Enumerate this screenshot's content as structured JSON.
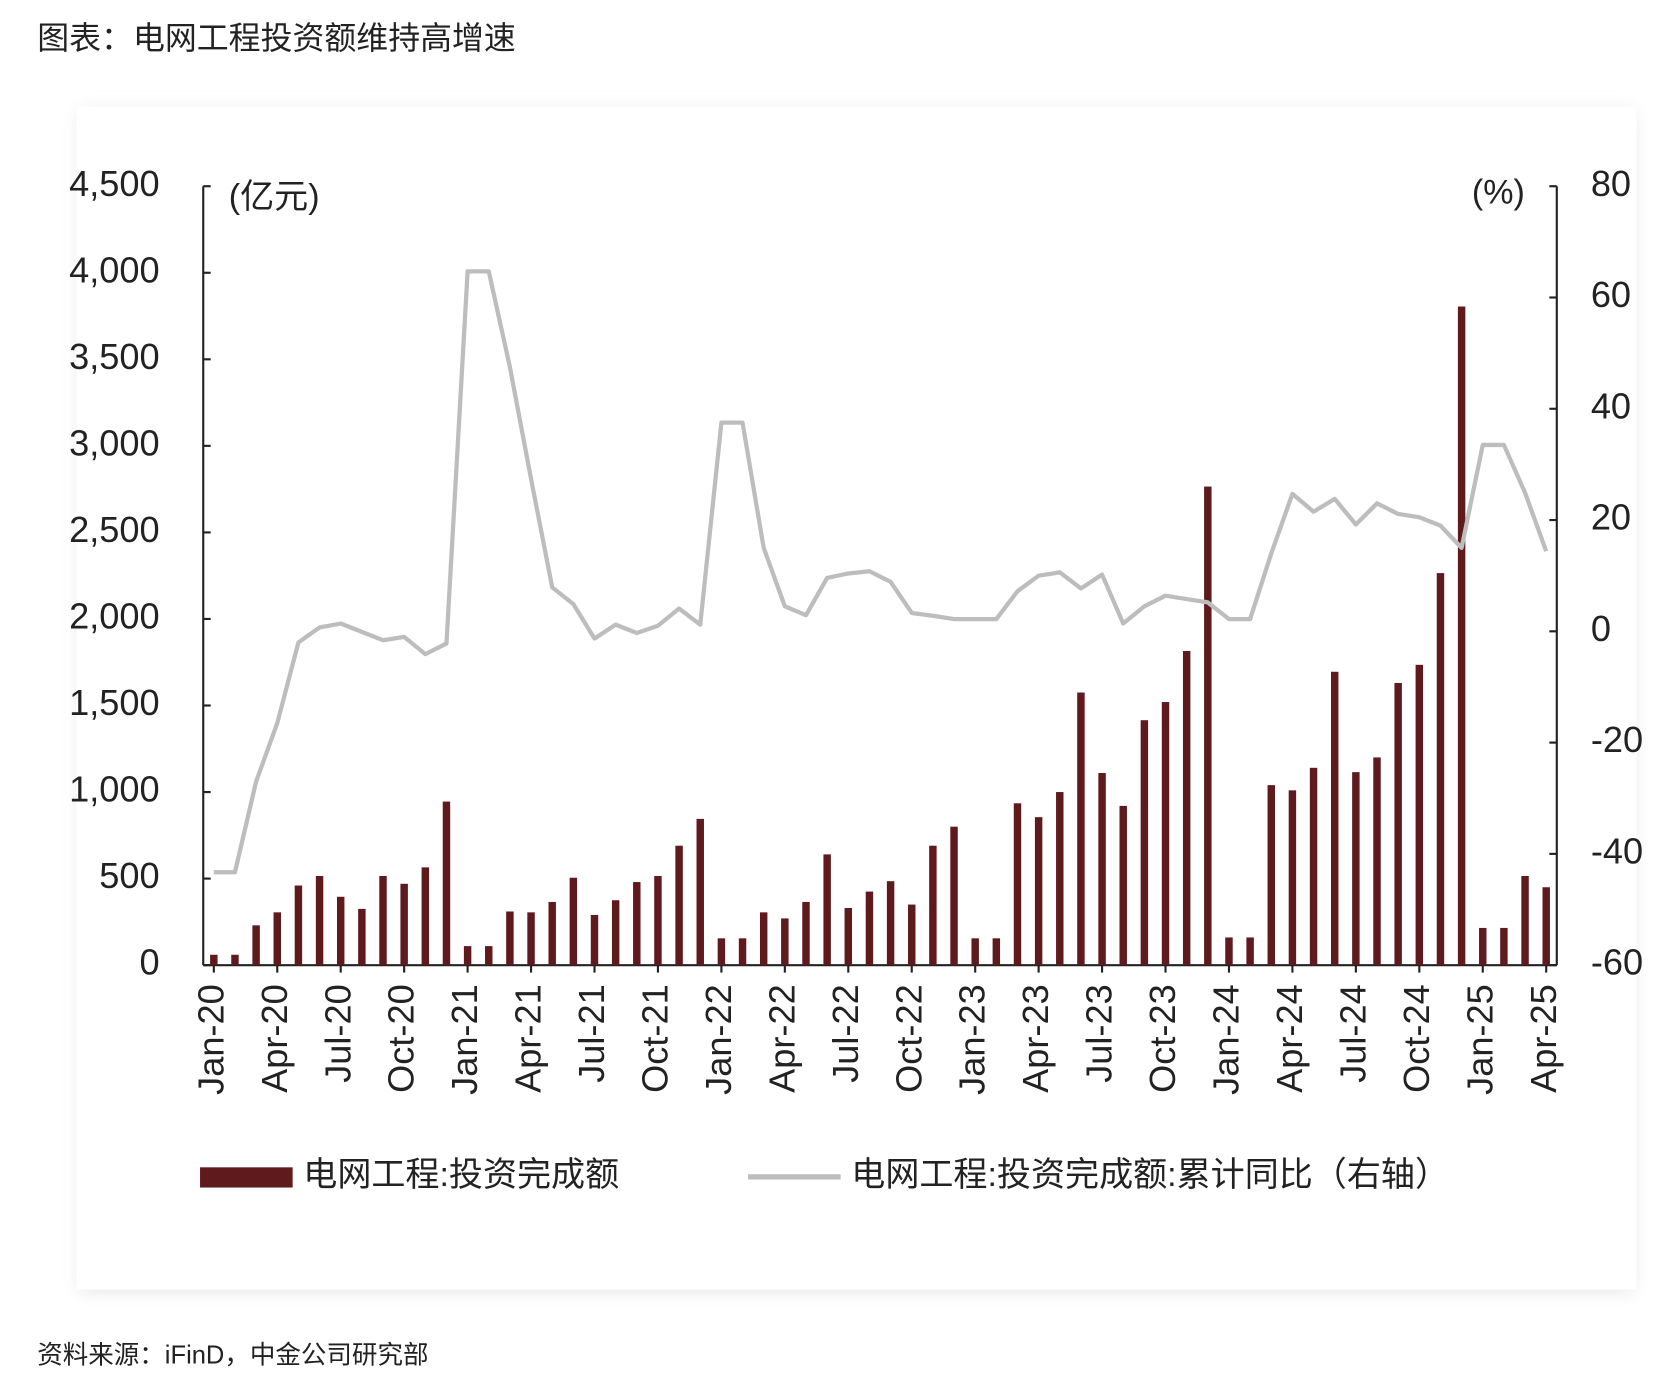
{
  "chart_data": {
    "type": "bar",
    "title": "图表：电网工程投资额维持高增速",
    "source": "资料来源：iFinD，中金公司研究部",
    "y_unit": "(亿元)",
    "y2_unit": "(%)",
    "categories": [
      "Jan-20",
      null,
      null,
      "Apr-20",
      null,
      null,
      "Jul-20",
      null,
      null,
      "Oct-20",
      null,
      null,
      "Jan-21",
      null,
      null,
      "Apr-21",
      null,
      null,
      "Jul-21",
      null,
      null,
      "Oct-21",
      null,
      null,
      "Jan-22",
      null,
      null,
      "Apr-22",
      null,
      null,
      "Jul-22",
      null,
      null,
      "Oct-22",
      null,
      null,
      "Jan-23",
      null,
      null,
      "Apr-23",
      null,
      null,
      "Jul-23",
      null,
      null,
      "Oct-23",
      null,
      null,
      "Jan-24",
      null,
      null,
      "Apr-24",
      null,
      null,
      "Jul-24",
      null,
      null,
      "Oct-24",
      null,
      null,
      "Jan-25",
      null,
      null,
      "Apr-25"
    ],
    "series": [
      {
        "name": "电网工程:投资完成额",
        "type": "bar",
        "color": "#5e1a1d",
        "values": [
          60,
          60,
          230,
          305,
          460,
          515,
          395,
          325,
          515,
          470,
          565,
          945,
          110,
          110,
          310,
          305,
          365,
          505,
          290,
          375,
          480,
          515,
          690,
          845,
          155,
          155,
          305,
          270,
          365,
          640,
          330,
          425,
          485,
          350,
          690,
          800,
          155,
          155,
          935,
          855,
          1000,
          1575,
          1110,
          920,
          1415,
          1520,
          1815,
          2765,
          160,
          160,
          1040,
          1010,
          1140,
          1695,
          1115,
          1200,
          1630,
          1735,
          2265,
          3805,
          215,
          215,
          515,
          450
        ]
      },
      {
        "name": "电网工程:投资完成额:累计同比（右轴）",
        "type": "line",
        "axis": "y2",
        "color": "#bdbdbd",
        "values": [
          -43.3,
          -43.3,
          -27,
          -16.5,
          -2,
          0.7,
          1.4,
          -0.1,
          -1.6,
          -1,
          -4.1,
          -2.2,
          64.7,
          64.7,
          47.5,
          27.4,
          7.9,
          4.9,
          -1.3,
          1.2,
          -0.3,
          1.0,
          4.1,
          1.2,
          37.5,
          37.5,
          15,
          4.5,
          2.9,
          9.6,
          10.4,
          10.8,
          8.9,
          3.3,
          2.8,
          2.2,
          2.2,
          2.2,
          7.2,
          10,
          10.6,
          7.7,
          10.2,
          1.4,
          4.5,
          6.4,
          5.8,
          5.2,
          2.2,
          2.2,
          14,
          24.7,
          21.5,
          23.8,
          19.2,
          23,
          21.1,
          20.5,
          19,
          15,
          33.5,
          33.5,
          24.9,
          14.4
        ]
      }
    ],
    "ylim": [
      0,
      4500
    ],
    "yticks": [
      0,
      500,
      {
        "value": 1000,
        "label": "1,000"
      },
      {
        "value": 1500,
        "label": "1,500"
      },
      {
        "value": 2000,
        "label": "2,000"
      },
      {
        "value": 2500,
        "label": "2,500"
      },
      {
        "value": 3000,
        "label": "3,000"
      },
      {
        "value": 3500,
        "label": "3,500"
      },
      {
        "value": 4000,
        "label": "4,000"
      },
      {
        "value": 4500,
        "label": "4,500"
      }
    ],
    "y2lim": [
      -60,
      80
    ],
    "y2ticks": [
      -60,
      -40,
      -20,
      0,
      20,
      40,
      60,
      80
    ],
    "grid": false,
    "legend": "bottom"
  }
}
